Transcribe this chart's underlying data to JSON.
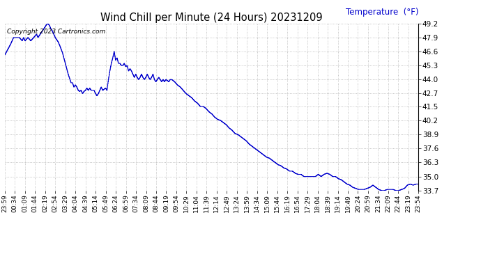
{
  "title": "Wind Chill per Minute (24 Hours) 20231209",
  "ylabel": "Temperature  (°F)",
  "copyright_text": "Copyright 2023 Cartronics.com",
  "line_color": "#0000cc",
  "background_color": "#ffffff",
  "grid_color": "#aaaaaa",
  "ylabel_color": "#0000cc",
  "ylim": [
    33.7,
    49.2
  ],
  "yticks": [
    33.7,
    35.0,
    36.3,
    37.6,
    38.9,
    40.2,
    41.5,
    42.7,
    44.0,
    45.3,
    46.6,
    47.9,
    49.2
  ],
  "x_labels": [
    "23:59",
    "00:34",
    "01:09",
    "01:44",
    "02:19",
    "02:54",
    "03:29",
    "04:04",
    "04:39",
    "05:14",
    "05:49",
    "06:24",
    "06:59",
    "07:34",
    "08:09",
    "08:44",
    "09:19",
    "09:54",
    "10:29",
    "11:04",
    "11:39",
    "12:14",
    "12:49",
    "13:24",
    "13:59",
    "14:34",
    "15:09",
    "15:44",
    "16:19",
    "16:54",
    "17:29",
    "18:04",
    "18:39",
    "19:14",
    "19:49",
    "20:24",
    "20:59",
    "21:34",
    "22:09",
    "22:44",
    "23:19",
    "23:54"
  ],
  "keypoints": [
    [
      0,
      46.3
    ],
    [
      10,
      46.8
    ],
    [
      20,
      47.3
    ],
    [
      30,
      47.9
    ],
    [
      40,
      47.9
    ],
    [
      50,
      47.9
    ],
    [
      60,
      47.6
    ],
    [
      65,
      47.9
    ],
    [
      70,
      47.6
    ],
    [
      80,
      47.9
    ],
    [
      90,
      47.6
    ],
    [
      100,
      47.9
    ],
    [
      110,
      48.2
    ],
    [
      115,
      47.9
    ],
    [
      120,
      48.1
    ],
    [
      130,
      48.5
    ],
    [
      145,
      49.1
    ],
    [
      150,
      49.2
    ],
    [
      155,
      49.0
    ],
    [
      160,
      48.7
    ],
    [
      165,
      48.5
    ],
    [
      170,
      48.2
    ],
    [
      175,
      47.9
    ],
    [
      185,
      47.5
    ],
    [
      190,
      47.2
    ],
    [
      200,
      46.5
    ],
    [
      210,
      45.5
    ],
    [
      220,
      44.5
    ],
    [
      230,
      43.7
    ],
    [
      235,
      43.7
    ],
    [
      240,
      43.3
    ],
    [
      245,
      43.5
    ],
    [
      250,
      43.3
    ],
    [
      255,
      43.0
    ],
    [
      260,
      42.9
    ],
    [
      265,
      43.0
    ],
    [
      270,
      42.7
    ],
    [
      275,
      42.9
    ],
    [
      280,
      43.0
    ],
    [
      285,
      43.2
    ],
    [
      290,
      43.0
    ],
    [
      295,
      43.2
    ],
    [
      300,
      43.0
    ],
    [
      310,
      43.0
    ],
    [
      315,
      42.7
    ],
    [
      320,
      42.5
    ],
    [
      325,
      42.7
    ],
    [
      330,
      43.0
    ],
    [
      335,
      43.3
    ],
    [
      340,
      43.0
    ],
    [
      350,
      43.2
    ],
    [
      355,
      43.0
    ],
    [
      360,
      44.0
    ],
    [
      365,
      44.8
    ],
    [
      370,
      45.5
    ],
    [
      375,
      46.0
    ],
    [
      380,
      46.6
    ],
    [
      385,
      45.8
    ],
    [
      390,
      46.0
    ],
    [
      395,
      45.5
    ],
    [
      400,
      45.5
    ],
    [
      405,
      45.3
    ],
    [
      410,
      45.3
    ],
    [
      415,
      45.5
    ],
    [
      420,
      45.2
    ],
    [
      425,
      45.3
    ],
    [
      430,
      44.8
    ],
    [
      435,
      45.0
    ],
    [
      440,
      44.8
    ],
    [
      445,
      44.5
    ],
    [
      450,
      44.2
    ],
    [
      455,
      44.5
    ],
    [
      460,
      44.2
    ],
    [
      465,
      44.0
    ],
    [
      470,
      44.2
    ],
    [
      475,
      44.5
    ],
    [
      480,
      44.2
    ],
    [
      485,
      44.0
    ],
    [
      490,
      44.2
    ],
    [
      495,
      44.5
    ],
    [
      500,
      44.2
    ],
    [
      505,
      44.0
    ],
    [
      510,
      44.2
    ],
    [
      515,
      44.5
    ],
    [
      520,
      44.0
    ],
    [
      525,
      43.8
    ],
    [
      530,
      44.0
    ],
    [
      535,
      44.2
    ],
    [
      540,
      44.0
    ],
    [
      545,
      43.8
    ],
    [
      550,
      44.0
    ],
    [
      555,
      43.8
    ],
    [
      560,
      44.0
    ],
    [
      570,
      43.8
    ],
    [
      575,
      44.0
    ],
    [
      580,
      44.0
    ],
    [
      590,
      43.8
    ],
    [
      600,
      43.5
    ],
    [
      610,
      43.3
    ],
    [
      620,
      43.0
    ],
    [
      630,
      42.7
    ],
    [
      640,
      42.5
    ],
    [
      650,
      42.3
    ],
    [
      660,
      42.0
    ],
    [
      670,
      41.8
    ],
    [
      680,
      41.5
    ],
    [
      690,
      41.5
    ],
    [
      700,
      41.3
    ],
    [
      710,
      41.0
    ],
    [
      720,
      40.8
    ],
    [
      730,
      40.5
    ],
    [
      740,
      40.3
    ],
    [
      750,
      40.2
    ],
    [
      760,
      40.0
    ],
    [
      770,
      39.8
    ],
    [
      780,
      39.5
    ],
    [
      790,
      39.3
    ],
    [
      800,
      39.0
    ],
    [
      810,
      38.9
    ],
    [
      820,
      38.7
    ],
    [
      830,
      38.5
    ],
    [
      840,
      38.3
    ],
    [
      850,
      38.0
    ],
    [
      860,
      37.8
    ],
    [
      870,
      37.6
    ],
    [
      880,
      37.4
    ],
    [
      890,
      37.2
    ],
    [
      900,
      37.0
    ],
    [
      910,
      36.8
    ],
    [
      920,
      36.7
    ],
    [
      930,
      36.5
    ],
    [
      940,
      36.3
    ],
    [
      950,
      36.1
    ],
    [
      960,
      36.0
    ],
    [
      970,
      35.8
    ],
    [
      980,
      35.7
    ],
    [
      990,
      35.5
    ],
    [
      1000,
      35.5
    ],
    [
      1010,
      35.3
    ],
    [
      1020,
      35.2
    ],
    [
      1030,
      35.2
    ],
    [
      1040,
      35.0
    ],
    [
      1050,
      35.0
    ],
    [
      1060,
      35.0
    ],
    [
      1070,
      35.0
    ],
    [
      1080,
      35.0
    ],
    [
      1090,
      35.2
    ],
    [
      1100,
      35.0
    ],
    [
      1110,
      35.2
    ],
    [
      1120,
      35.3
    ],
    [
      1130,
      35.2
    ],
    [
      1140,
      35.0
    ],
    [
      1150,
      35.0
    ],
    [
      1160,
      34.8
    ],
    [
      1170,
      34.7
    ],
    [
      1180,
      34.5
    ],
    [
      1190,
      34.3
    ],
    [
      1200,
      34.2
    ],
    [
      1210,
      34.0
    ],
    [
      1220,
      33.9
    ],
    [
      1230,
      33.8
    ],
    [
      1240,
      33.8
    ],
    [
      1250,
      33.8
    ],
    [
      1260,
      33.9
    ],
    [
      1270,
      34.0
    ],
    [
      1280,
      34.2
    ],
    [
      1290,
      34.0
    ],
    [
      1300,
      33.8
    ],
    [
      1310,
      33.7
    ],
    [
      1320,
      33.7
    ],
    [
      1330,
      33.8
    ],
    [
      1340,
      33.8
    ],
    [
      1350,
      33.8
    ],
    [
      1360,
      33.7
    ],
    [
      1370,
      33.7
    ],
    [
      1380,
      33.8
    ],
    [
      1390,
      33.9
    ],
    [
      1400,
      34.2
    ],
    [
      1410,
      34.3
    ],
    [
      1420,
      34.2
    ],
    [
      1430,
      34.3
    ],
    [
      1439,
      34.3
    ]
  ]
}
